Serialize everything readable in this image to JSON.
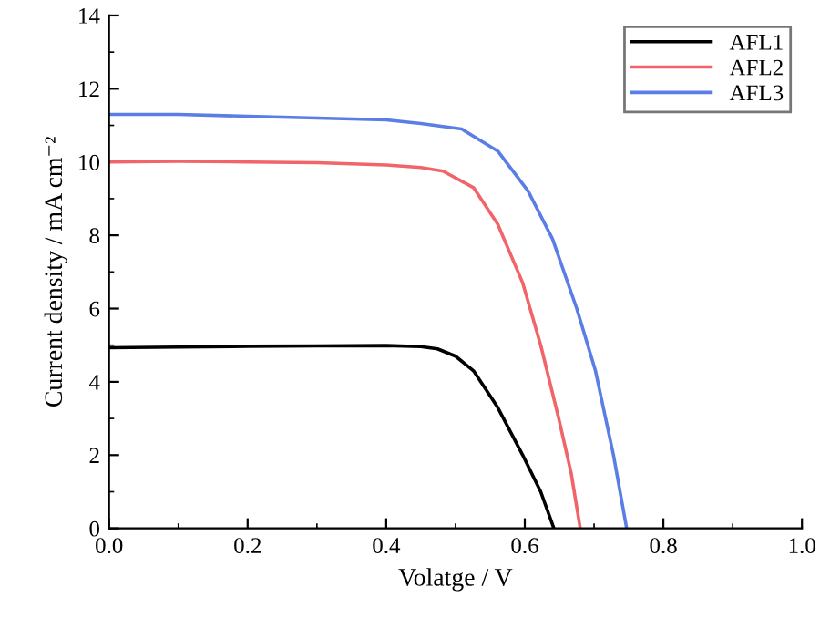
{
  "chart_data": {
    "type": "line",
    "xlabel": "Volatge / V",
    "ylabel": "Current density / mA cm⁻²",
    "xlim": [
      0,
      1.0
    ],
    "ylim": [
      0,
      14
    ],
    "xticks": [
      {
        "value": 0,
        "label": "0.0"
      },
      0.2,
      0.4,
      0.6,
      0.8,
      {
        "value": 1.0,
        "label": "1.0"
      }
    ],
    "yticks": [
      0,
      2,
      4,
      6,
      8,
      10,
      12,
      14
    ],
    "legend": "top right",
    "grid": false,
    "marker": "none",
    "line_style": "solid",
    "series": [
      {
        "name": "AFL1",
        "color": "#000000",
        "x": [
          0,
          0.1,
          0.2,
          0.3,
          0.4,
          0.45,
          0.474,
          0.5,
          0.526,
          0.561,
          0.597,
          0.623,
          0.642
        ],
        "values": [
          4.93,
          4.95,
          4.97,
          4.98,
          4.99,
          4.96,
          4.9,
          4.7,
          4.3,
          3.3,
          2.0,
          1.0,
          0
        ]
      },
      {
        "name": "AFL2",
        "color": "#f0646a",
        "x": [
          0,
          0.1,
          0.2,
          0.3,
          0.4,
          0.45,
          0.482,
          0.526,
          0.561,
          0.597,
          0.623,
          0.649,
          0.667,
          0.68
        ],
        "values": [
          10.0,
          10.02,
          10.0,
          9.98,
          9.92,
          9.85,
          9.75,
          9.3,
          8.3,
          6.7,
          5.0,
          3.0,
          1.5,
          0
        ]
      },
      {
        "name": "AFL3",
        "color": "#5a7de6",
        "x": [
          0,
          0.1,
          0.2,
          0.3,
          0.4,
          0.45,
          0.509,
          0.561,
          0.605,
          0.64,
          0.675,
          0.702,
          0.728,
          0.747
        ],
        "values": [
          11.3,
          11.3,
          11.25,
          11.2,
          11.15,
          11.05,
          10.9,
          10.3,
          9.2,
          7.9,
          6.0,
          4.3,
          2.0,
          0
        ]
      }
    ]
  }
}
